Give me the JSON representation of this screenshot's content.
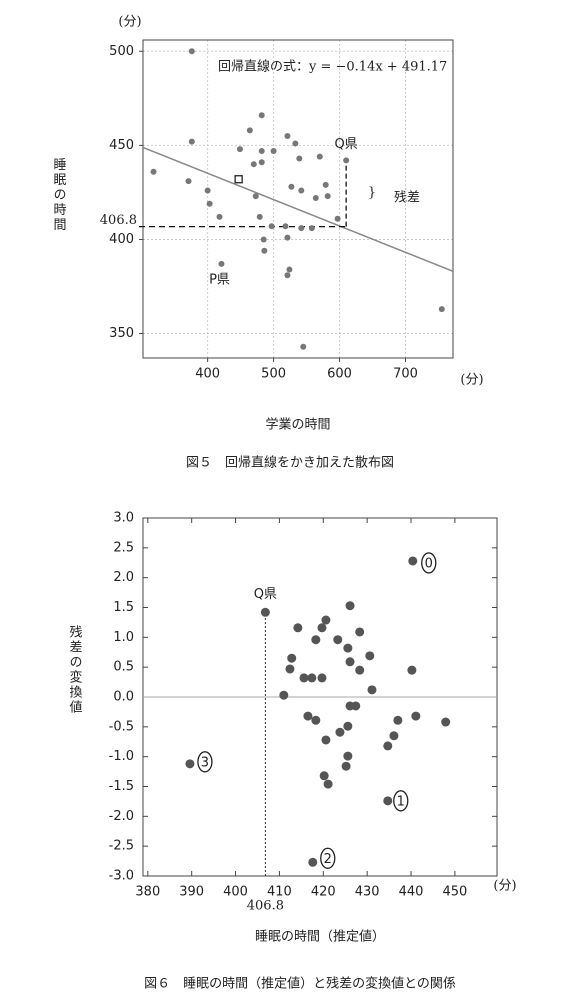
{
  "chart_data": [
    {
      "type": "scatter",
      "caption": "図５　回帰直線をかき加えた散布図",
      "x_label": "学業の時間",
      "y_label": "睡眠の時間",
      "x_unit": "(分)",
      "y_unit": "(分)",
      "xlim": [
        302,
        772
      ],
      "ylim": [
        337,
        506
      ],
      "xticks": [
        400,
        500,
        600,
        700
      ],
      "yticks": [
        350,
        400,
        450,
        500
      ],
      "grid": true,
      "series": [
        {
          "color": "#777777",
          "marker": "circle",
          "x": [
            376,
            318,
            371,
            376,
            400,
            403,
            418,
            421,
            449,
            464,
            470,
            473,
            482,
            482,
            482,
            479,
            485,
            486,
            500,
            497,
            518,
            521,
            521,
            524,
            521,
            533,
            539,
            527,
            542,
            542,
            545,
            558,
            564,
            570,
            579,
            582,
            597,
            610,
            755
          ],
          "values": [
            500,
            436,
            431,
            452,
            426,
            419,
            412,
            387,
            448,
            458,
            440,
            423,
            466,
            447,
            441,
            412,
            400,
            394,
            447,
            407,
            407,
            455,
            401,
            384,
            381,
            451,
            443,
            428,
            426,
            406,
            343,
            406,
            422,
            444,
            429,
            423,
            411,
            442,
            363
          ]
        },
        {
          "color": "#222222",
          "marker": "square",
          "x": [
            447
          ],
          "values": [
            432
          ]
        }
      ],
      "regression": {
        "slope": -0.14,
        "intercept": 491.17,
        "color": "#888888"
      },
      "annotations": {
        "equation": "回帰直線の式：y = −0.14x + 491.17",
        "q_label": "Q県",
        "p_label": "P県",
        "residual": "残差",
        "predicted": {
          "value": 406.8,
          "label": "406.8"
        }
      }
    },
    {
      "type": "scatter",
      "caption": "図６　睡眠の時間（推定値）と残差の変換値との関係",
      "x_label": "睡眠の時間（推定値）",
      "y_label": "残差の変換値",
      "x_unit": "(分)",
      "xlim": [
        378.9,
        459.6
      ],
      "ylim": [
        -3,
        3
      ],
      "xticks": [
        380,
        390,
        400,
        410,
        420,
        430,
        440,
        450
      ],
      "yticks": [
        {
          "value": 3,
          "label": "3.0"
        },
        2.5,
        {
          "value": 2,
          "label": "2.0"
        },
        1.5,
        {
          "value": 1,
          "label": "1.0"
        },
        0.5,
        {
          "value": 0,
          "label": "0.0"
        },
        -0.5,
        {
          "value": -1,
          "label": "-1.0"
        },
        -1.5,
        {
          "value": -2,
          "label": "-2.0"
        },
        -2.5,
        {
          "value": -3,
          "label": "-3.0"
        }
      ],
      "grid": false,
      "mirror_ticks": true,
      "reference_line": 0,
      "series": [
        {
          "color": "#555555",
          "marker": "circle",
          "x": [
            406.8,
            440.4,
            434.7,
            417.6,
            389.6,
            414.2,
            412.8,
            412.4,
            411,
            415.6,
            417.4,
            419.7,
            418.3,
            419.7,
            420.6,
            423.3,
            426.1,
            428.3,
            425.6,
            426.1,
            428.3,
            430.6,
            431.1,
            416.5,
            418.3,
            420.6,
            423.8,
            426.1,
            427.4,
            425.6,
            425.6,
            425.2,
            420.2,
            421.1,
            434.7,
            436.1,
            437,
            440.2,
            441.1,
            447.9
          ],
          "values": [
            1.42,
            2.28,
            -1.74,
            -2.77,
            -1.12,
            1.16,
            0.65,
            0.47,
            0.03,
            0.32,
            0.32,
            0.32,
            0.96,
            1.16,
            1.29,
            0.96,
            1.53,
            1.09,
            0.82,
            0.59,
            0.45,
            0.69,
            0.12,
            -0.32,
            -0.39,
            -0.72,
            -0.59,
            -0.15,
            -0.15,
            -0.49,
            -0.99,
            -1.16,
            -1.32,
            -1.46,
            -0.82,
            -0.65,
            -0.39,
            0.45,
            -0.32,
            -0.42
          ]
        }
      ],
      "point_labels": [
        "0",
        "1",
        "2",
        "3"
      ],
      "annotations": {
        "q_label": "Q県",
        "predicted": {
          "value": 406.8,
          "label": "406.8"
        }
      }
    }
  ]
}
